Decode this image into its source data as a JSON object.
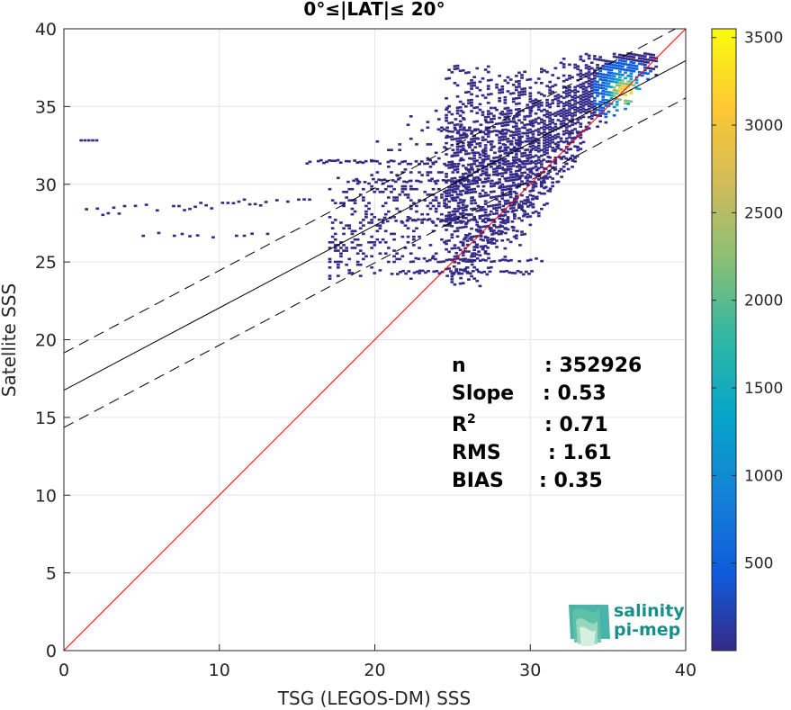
{
  "chart_data": {
    "type": "heatmap",
    "title": "0°≤|LAT|≤ 20°",
    "xlabel": "TSG (LEGOS-DM) SSS",
    "ylabel": "Satellite SSS",
    "xlim": [
      0,
      40
    ],
    "ylim": [
      0,
      40
    ],
    "xticks": [
      "0",
      "10",
      "20",
      "30",
      "40"
    ],
    "yticks": [
      "0",
      "5",
      "10",
      "15",
      "20",
      "25",
      "30",
      "35",
      "40"
    ],
    "grid": true,
    "colorbar": {
      "range": [
        0,
        3550
      ],
      "ticks": [
        "500",
        "1000",
        "1500",
        "2000",
        "2500",
        "3000",
        "3500"
      ],
      "colormap": "parula",
      "colors": [
        "#352a87",
        "#0f5cdd",
        "#1481d6",
        "#06a4ca",
        "#2eb7a4",
        "#87bf77",
        "#d1bb59",
        "#fec832",
        "#f9fb0e"
      ]
    },
    "lines": [
      {
        "style": "identity",
        "color": "#ff0000",
        "points": [
          [
            0,
            0
          ],
          [
            40,
            40
          ]
        ]
      },
      {
        "style": "regression",
        "color": "#000000",
        "points": [
          [
            0,
            16.75
          ],
          [
            40,
            37.95
          ]
        ]
      },
      {
        "style": "regression-plus-2sigma",
        "color": "#000000",
        "dash": true,
        "points": [
          [
            0,
            19.15
          ],
          [
            40,
            40.35
          ]
        ]
      },
      {
        "style": "regression-minus-2sigma",
        "color": "#000000",
        "dash": true,
        "points": [
          [
            0,
            14.35
          ],
          [
            40,
            35.55
          ]
        ]
      }
    ],
    "density_regions": [
      {
        "x": [
          25,
          38
        ],
        "y": [
          23.5,
          38.5
        ],
        "density": "high"
      },
      {
        "x": [
          17,
          30
        ],
        "y": [
          24,
          35
        ],
        "density": "medium"
      },
      {
        "x": [
          1,
          16
        ],
        "y": [
          26.5,
          29
        ],
        "density": "sparse"
      }
    ],
    "hotspot": {
      "x": 36,
      "y": 36,
      "count": 3500
    },
    "stats": [
      {
        "label": "n",
        "value": ": 352926"
      },
      {
        "label": "Slope",
        "value": ": 0.53"
      },
      {
        "label": "R",
        "sup": "2",
        "value": ": 0.71"
      },
      {
        "label": "RMS",
        "value": ": 1.61"
      },
      {
        "label": "BIAS",
        "value": ": 0.35"
      }
    ]
  },
  "logo": {
    "line1": "salinity",
    "line2": "pi-mep"
  }
}
